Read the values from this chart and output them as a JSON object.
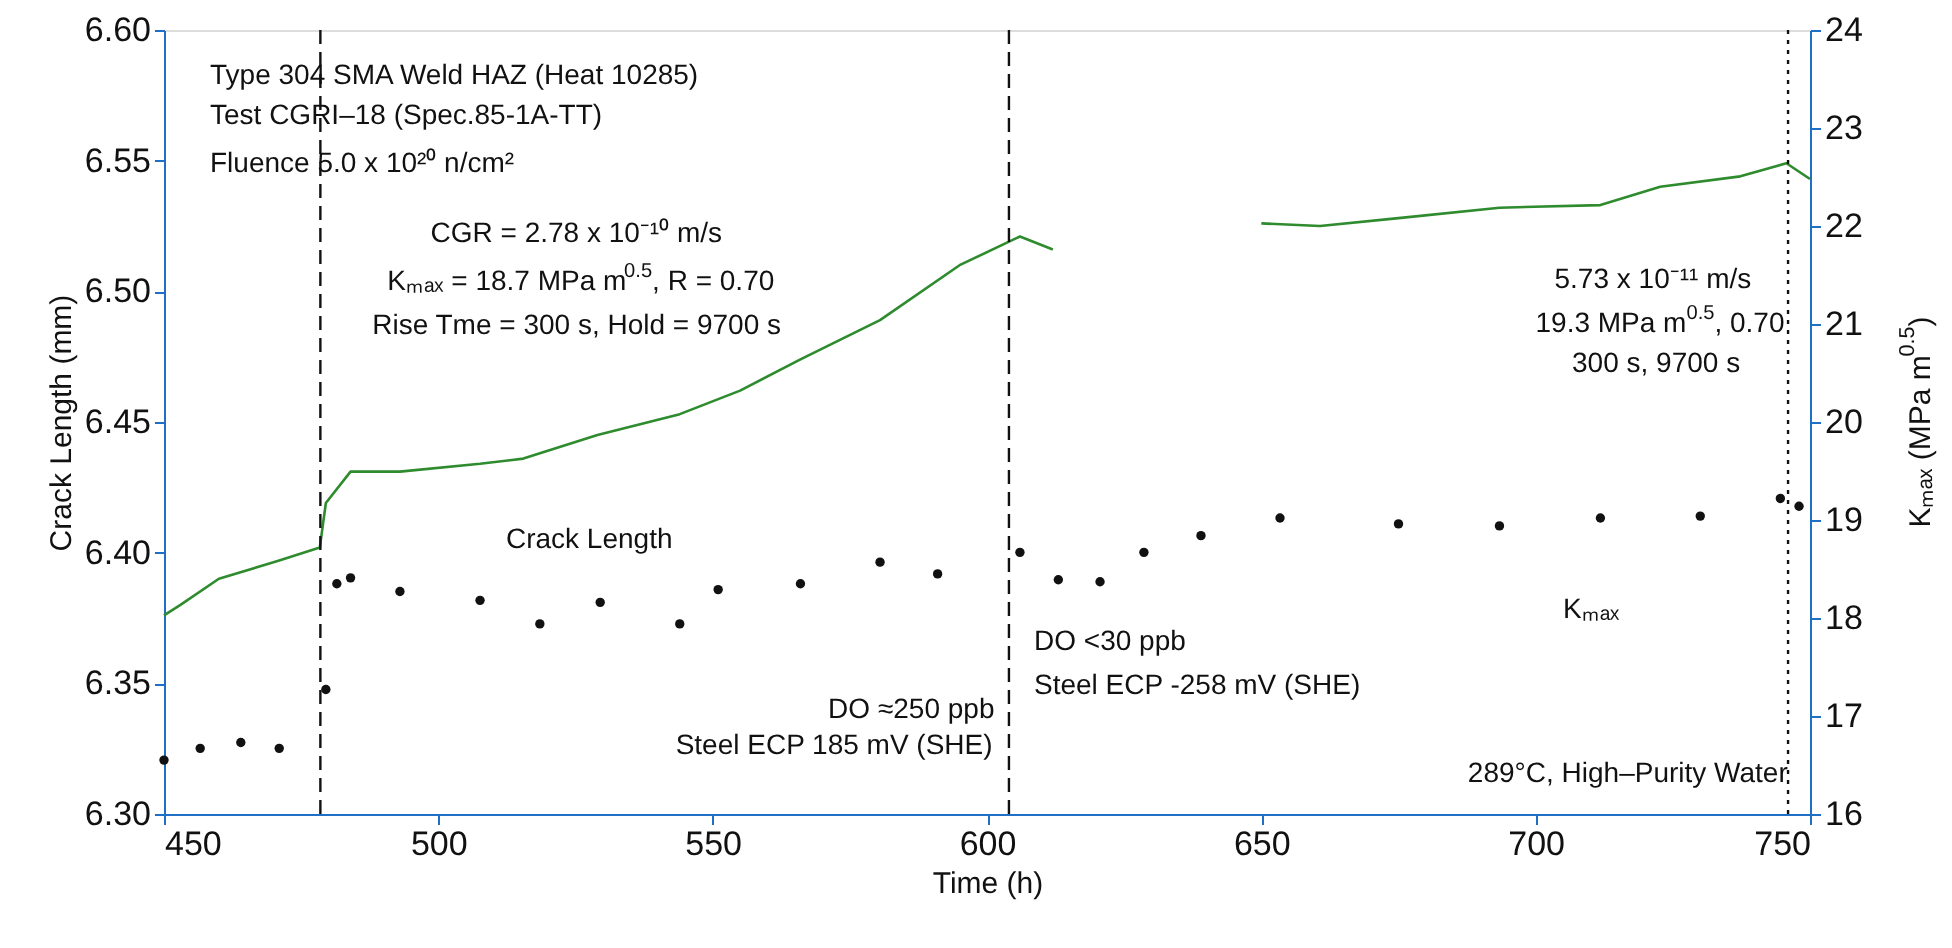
{
  "chart_data": {
    "type": "line",
    "xlabel": "Time (h)",
    "ylabel": "Crack Length (mm)",
    "y2label": "Kₘₐₓ (MPa m$^{0.5}$)",
    "xlim": [
      450,
      750
    ],
    "xticks": [
      450,
      500,
      550,
      600,
      650,
      700,
      750
    ],
    "ylim": [
      6.3,
      6.6
    ],
    "yticks": [
      {
        "value": 6.3,
        "label": "6.30"
      },
      {
        "value": 6.35,
        "label": "6.35"
      },
      {
        "value": 6.4,
        "label": "6.40"
      },
      {
        "value": 6.45,
        "label": "6.45"
      },
      {
        "value": 6.5,
        "label": "6.50"
      },
      {
        "value": 6.55,
        "label": "6.55"
      },
      {
        "value": 6.6,
        "label": "6.60"
      }
    ],
    "y2lim": [
      16,
      24
    ],
    "y2ticks": [
      16,
      17,
      18,
      19,
      20,
      21,
      22,
      23,
      24
    ],
    "grid": false,
    "legend": false,
    "series": [
      {
        "color": "#2e8b2e",
        "line_style": "solid",
        "marker": "none",
        "x": [
          450,
          453,
          460,
          471,
          478.4,
          479.5,
          484,
          493,
          507.6,
          515.5,
          529,
          544,
          555,
          566,
          580.5,
          595,
          606,
          612,
          630,
          650,
          660.7,
          675,
          693.4,
          711.8,
          722.7,
          737.3,
          745.7,
          750
        ],
        "values": [
          6.376,
          6.38,
          6.39,
          6.397,
          6.402,
          6.419,
          6.431,
          6.431,
          6.434,
          6.436,
          6.445,
          6.453,
          6.462,
          6.474,
          6.489,
          6.51,
          6.521,
          6.516,
          null,
          6.526,
          6.525,
          6.528,
          6.532,
          6.533,
          6.54,
          6.544,
          6.549,
          6.543
        ]
      },
      {
        "type": "scatter",
        "axis": "y2",
        "color": "#111111",
        "marker": "circle",
        "x": [
          450,
          456.6,
          464,
          471,
          479.5,
          481.5,
          484,
          493,
          507.6,
          518.5,
          529.5,
          544,
          551,
          566,
          580.5,
          591,
          606,
          613,
          620.6,
          628.6,
          639,
          653.4,
          675,
          693.4,
          711.8,
          730,
          744.6,
          748
        ],
        "values": [
          16.55,
          16.67,
          16.73,
          16.67,
          17.27,
          18.35,
          18.41,
          18.27,
          18.18,
          17.94,
          18.16,
          17.94,
          18.29,
          18.35,
          18.57,
          18.45,
          18.67,
          18.39,
          18.37,
          18.67,
          18.84,
          19.02,
          18.96,
          18.94,
          19.02,
          19.04,
          19.22,
          19.14
        ]
      }
    ],
    "ref_lines": [
      {
        "axis": "x",
        "value": 478.5,
        "color": "#111111",
        "line_style": "dashed"
      },
      {
        "axis": "x",
        "value": 604,
        "color": "#111111",
        "line_style": "dashed"
      },
      {
        "axis": "x",
        "value": 746,
        "color": "#111111",
        "line_style": "dotted"
      }
    ],
    "annotations": [
      "Type 304 SMA Weld HAZ (Heat 10285)",
      "Test CGRI–18 (Spec.85-1A-TT)",
      "Fluence 5.0 x 10²⁰ n/cm²",
      "CGR = 2.78 x 10⁻¹⁰ m/s",
      "Kₘₐₓ = 18.7 MPa m$^{0.5}$, R = 0.70",
      "Rise Tme = 300 s,  Hold = 9700 s",
      "5.73 x 10⁻¹¹ m/s",
      "19.3 MPa m$^{0.5}$, 0.70",
      "300 s,  9700 s",
      "Crack Length",
      "Kₘₐₓ",
      "DO ≈250 ppb",
      "Steel ECP 185 mV (SHE)",
      "DO <30 ppb",
      "Steel ECP -258 mV (SHE)",
      "289°C, High–Purity Water"
    ]
  }
}
